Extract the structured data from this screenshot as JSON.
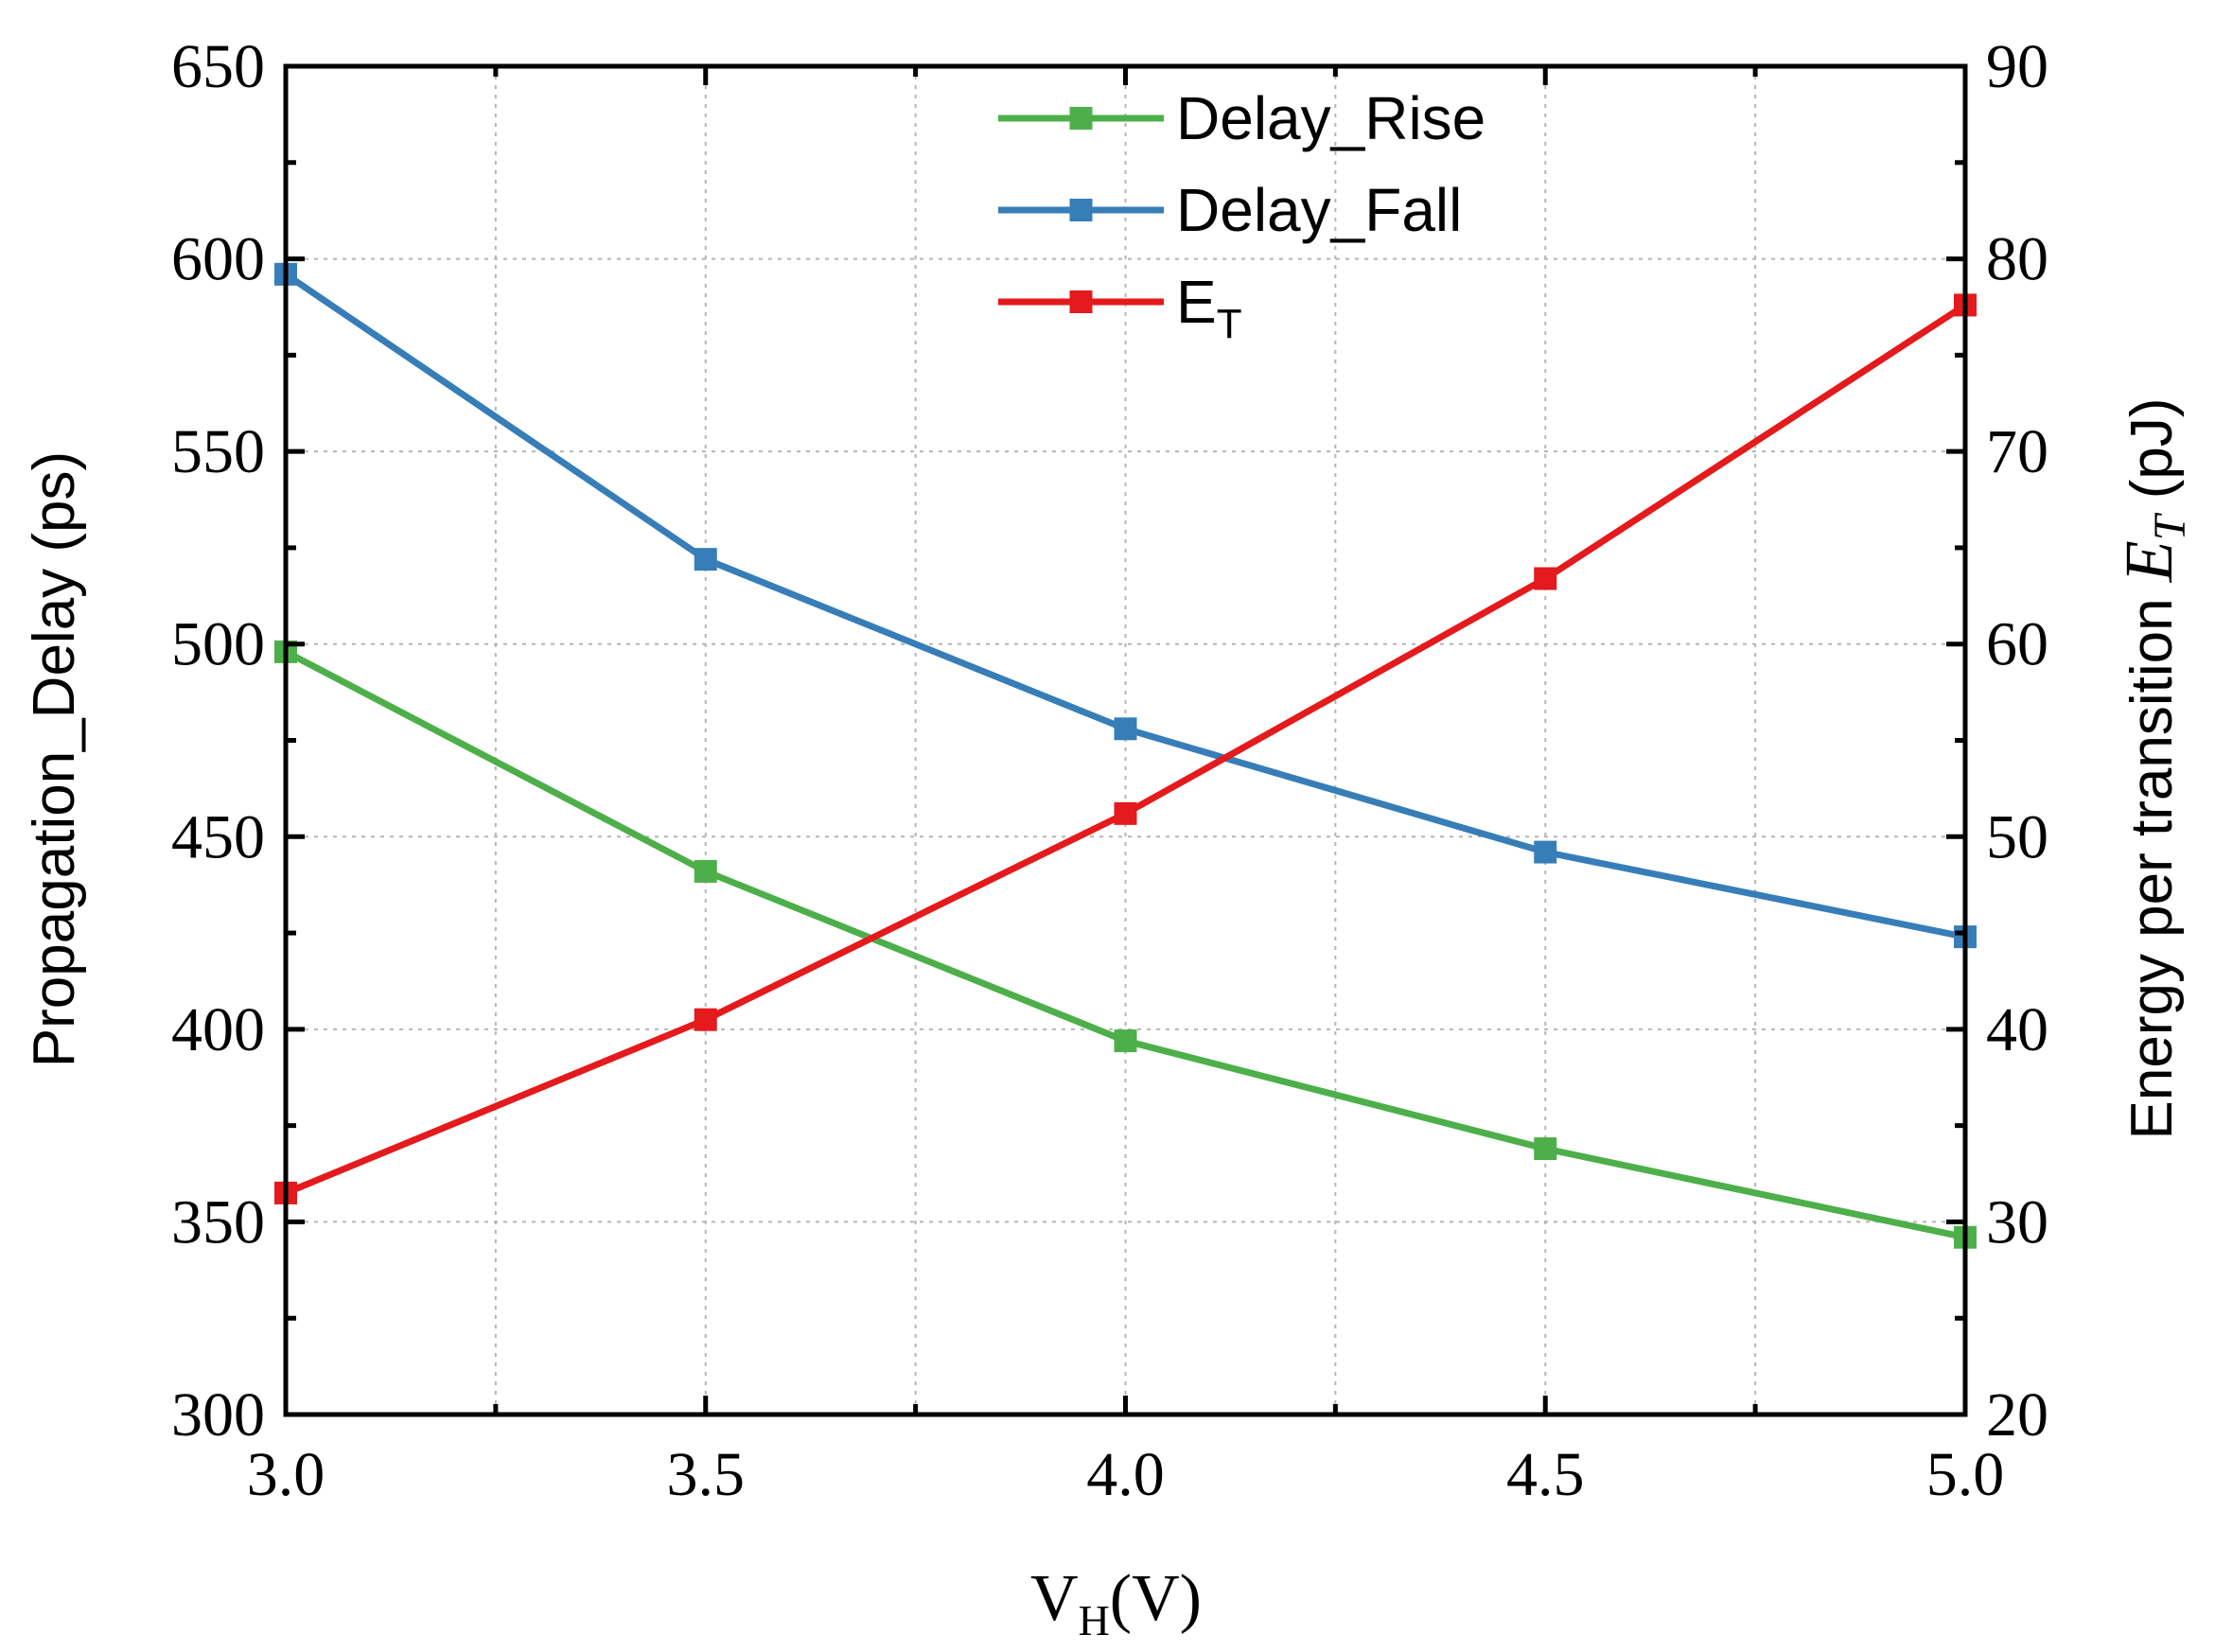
{
  "chart_data": {
    "type": "line",
    "x": [
      3.0,
      3.5,
      4.0,
      4.5,
      5.0
    ],
    "xlabel": {
      "main": "V",
      "sub": "H",
      "unit": "(V)"
    },
    "ylabel": "Propagation_Delay (ps)",
    "y2label": {
      "prefix": "Energy per transition ",
      "var": "E",
      "sub": "T",
      "unit": " (pJ)"
    },
    "xlim": [
      3.0,
      5.0
    ],
    "ylim": [
      300,
      650
    ],
    "y2lim": [
      20,
      90
    ],
    "xticks": [
      "3.0",
      "3.5",
      "4.0",
      "4.5",
      "5.0"
    ],
    "yticks": [
      "300",
      "350",
      "400",
      "450",
      "500",
      "550",
      "600",
      "650"
    ],
    "y2ticks": [
      "20",
      "30",
      "40",
      "50",
      "60",
      "70",
      "80",
      "90"
    ],
    "grid": true,
    "legend_position": "top-center",
    "series": [
      {
        "name": "Delay_Rise",
        "axis": "left",
        "color": "#4daf4a",
        "values": [
          498,
          441,
          397,
          369,
          346
        ]
      },
      {
        "name": "Delay_Fall",
        "axis": "left",
        "color": "#377eb8",
        "values": [
          596,
          522,
          478,
          446,
          424
        ]
      },
      {
        "name": "E",
        "name_sub": "T",
        "axis": "right",
        "color": "#e41a1c",
        "values": [
          31.5,
          40.5,
          51.2,
          63.4,
          77.6
        ]
      }
    ]
  }
}
